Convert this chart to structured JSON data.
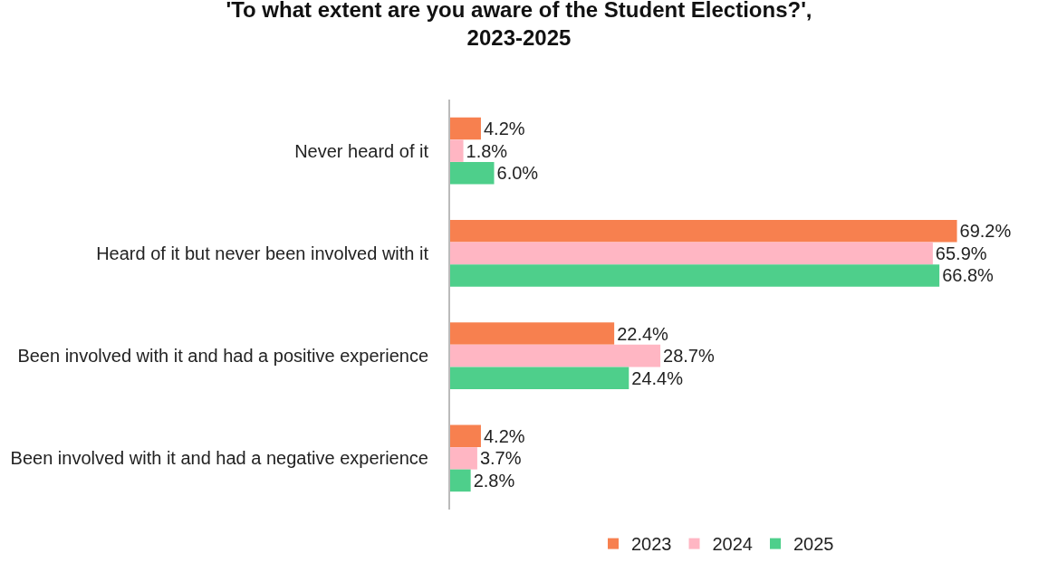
{
  "chart_data": {
    "type": "bar",
    "orientation": "horizontal",
    "title": "'To what extent are you aware of the Student Elections?',\n2023-2025",
    "categories": [
      "Never heard of it",
      "Heard of it but never been involved with it",
      "Been involved with it and had a positive experience",
      "Been involved with it and had a negative experience"
    ],
    "series": [
      {
        "name": "2023",
        "color": "#f7804f",
        "values": [
          4.2,
          69.2,
          22.4,
          4.2
        ],
        "value_labels": [
          "4.2%",
          "69.2%",
          "22.4%",
          "4.2%"
        ]
      },
      {
        "name": "2024",
        "color": "#ffb6c3",
        "values": [
          1.8,
          65.9,
          28.7,
          3.7
        ],
        "value_labels": [
          "1.8%",
          "65.9%",
          "28.7%",
          "3.7%"
        ]
      },
      {
        "name": "2025",
        "color": "#4ecf8b",
        "values": [
          6.0,
          66.8,
          24.4,
          2.8
        ],
        "value_labels": [
          "6.0%",
          "66.8%",
          "24.4%",
          "2.8%"
        ]
      }
    ],
    "tick_labels": "y",
    "legend": "bottom"
  }
}
